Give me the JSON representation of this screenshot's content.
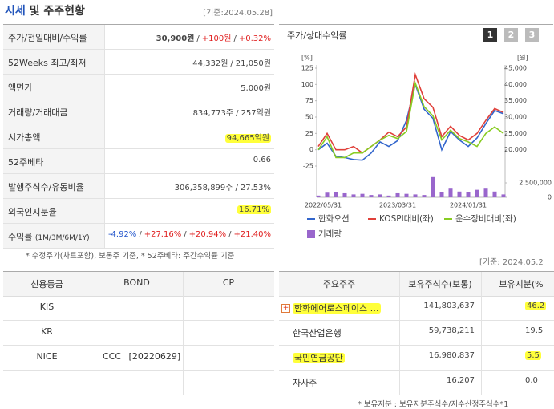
{
  "header": {
    "title_1": "시세",
    "title_2": "및 주주현황",
    "date": "[기준:2024.05.28]"
  },
  "summary": {
    "rows": [
      {
        "label": "주가/전일대비/수익률",
        "parts": [
          "30,900원",
          "/",
          "+100원",
          "/",
          "+0.32%"
        ]
      },
      {
        "label": "52Weeks 최고/최저",
        "parts": [
          "44,332원",
          "/",
          "21,050원"
        ]
      },
      {
        "label": "액면가",
        "parts": [
          "5,000원"
        ]
      },
      {
        "label": "거래량/거래대금",
        "parts": [
          "834,773주",
          "/",
          "257억원"
        ]
      },
      {
        "label": "시가총액",
        "parts": [
          "94,665억원"
        ],
        "highlight": true
      },
      {
        "label": "52주베타",
        "parts": [
          "0.66"
        ]
      },
      {
        "label": "발행주식수/유동비율",
        "parts": [
          "306,358,899주",
          "/",
          "27.53%"
        ]
      },
      {
        "label": "외국인지분율",
        "parts": [
          "16.71%"
        ],
        "highlight": true
      },
      {
        "label": "수익률",
        "sublabel": "(1M/3M/6M/1Y)",
        "parts": [
          "-4.92%",
          "/",
          "+27.16%",
          "/",
          "+20.94%",
          "/",
          "+21.40%"
        ]
      }
    ],
    "footnote": "* 수정주가(차트포함), 보통주 기준, * 52주베타: 주간수익률 기준"
  },
  "chart_panel": {
    "title": "주가/상대수익률",
    "buttons": [
      "1",
      "2",
      "3"
    ],
    "y_unit": "[%]",
    "y2_unit": "[원]"
  },
  "chart_data": {
    "type": "line",
    "categories": [
      "2022/05/31",
      null,
      null,
      null,
      null,
      null,
      null,
      null,
      null,
      "2023/03/31",
      null,
      null,
      null,
      null,
      null,
      null,
      null,
      "2024/01/31",
      null,
      null,
      null,
      null
    ],
    "series": [
      {
        "name": "한화오션",
        "color": "#3366cc",
        "values": [
          0,
          10,
          -10,
          -12,
          -15,
          -16,
          -5,
          12,
          5,
          14,
          45,
          100,
          62,
          48,
          0,
          28,
          15,
          5,
          18,
          40,
          60,
          55
        ]
      },
      {
        "name": "KOSPI대비(좌)",
        "color": "#e0403a",
        "values": [
          5,
          25,
          0,
          0,
          5,
          -5,
          5,
          15,
          27,
          20,
          35,
          115,
          78,
          65,
          20,
          36,
          22,
          15,
          25,
          45,
          63,
          57
        ]
      },
      {
        "name": "운수장비대비(좌)",
        "color": "#88cc22",
        "values": [
          0,
          20,
          -12,
          -12,
          -5,
          -5,
          5,
          15,
          22,
          17,
          28,
          102,
          66,
          52,
          15,
          30,
          17,
          12,
          5,
          25,
          35,
          25
        ]
      }
    ],
    "volume": {
      "name": "거래량",
      "color": "#9966cc",
      "values": [
        300000,
        800000,
        900000,
        700000,
        500000,
        600000,
        400000,
        500000,
        300000,
        700000,
        600000,
        500000,
        400000,
        3500000,
        900000,
        1500000,
        1000000,
        900000,
        1300000,
        1500000,
        1000000,
        500000
      ],
      "ylim": [
        0,
        5000000
      ],
      "yticks": [
        {
          "value": 2500000,
          "label": "2,500,000"
        },
        0
      ]
    },
    "ylim": [
      -25,
      125
    ],
    "yticks": [
      125,
      100,
      75,
      50,
      25,
      0,
      -25
    ],
    "y2lim": [
      15000,
      45000
    ],
    "y2ticks": [
      {
        "value": 45000,
        "label": "45,000"
      },
      {
        "value": 40000,
        "label": "40,000"
      },
      {
        "value": 35000,
        "label": "35,000"
      },
      {
        "value": 30000,
        "label": "30,000"
      },
      {
        "value": 25000,
        "label": "25,000"
      },
      {
        "value": 20000,
        "label": "20,000"
      }
    ]
  },
  "credit": {
    "headers": [
      "신용등급",
      "BOND",
      "CP"
    ],
    "rows": [
      {
        "agency": "KIS"
      },
      {
        "agency": "KR"
      },
      {
        "agency": "NICE",
        "bond": "CCC",
        "bond_date": "[20220629]"
      }
    ]
  },
  "holders": {
    "date": "[기준: 2024.05.2",
    "headers": [
      "주요주주",
      "보유주식수(보통)",
      "보유지분(%"
    ],
    "rows": [
      {
        "name": "한화에어로스페이스 …",
        "shares": "141,803,637",
        "pct": "46.2",
        "highlight": true,
        "icon": true
      },
      {
        "name": "한국산업은행",
        "shares": "59,738,211",
        "pct": "19.5"
      },
      {
        "name": "국민연금공단",
        "shares": "16,980,837",
        "pct": "5.5",
        "highlight": true
      },
      {
        "name": "자사주",
        "shares": "16,207",
        "pct": "0.0"
      }
    ],
    "footnote": "* 보유지분 : 보유지분주식수/지수산정주식수*1"
  }
}
